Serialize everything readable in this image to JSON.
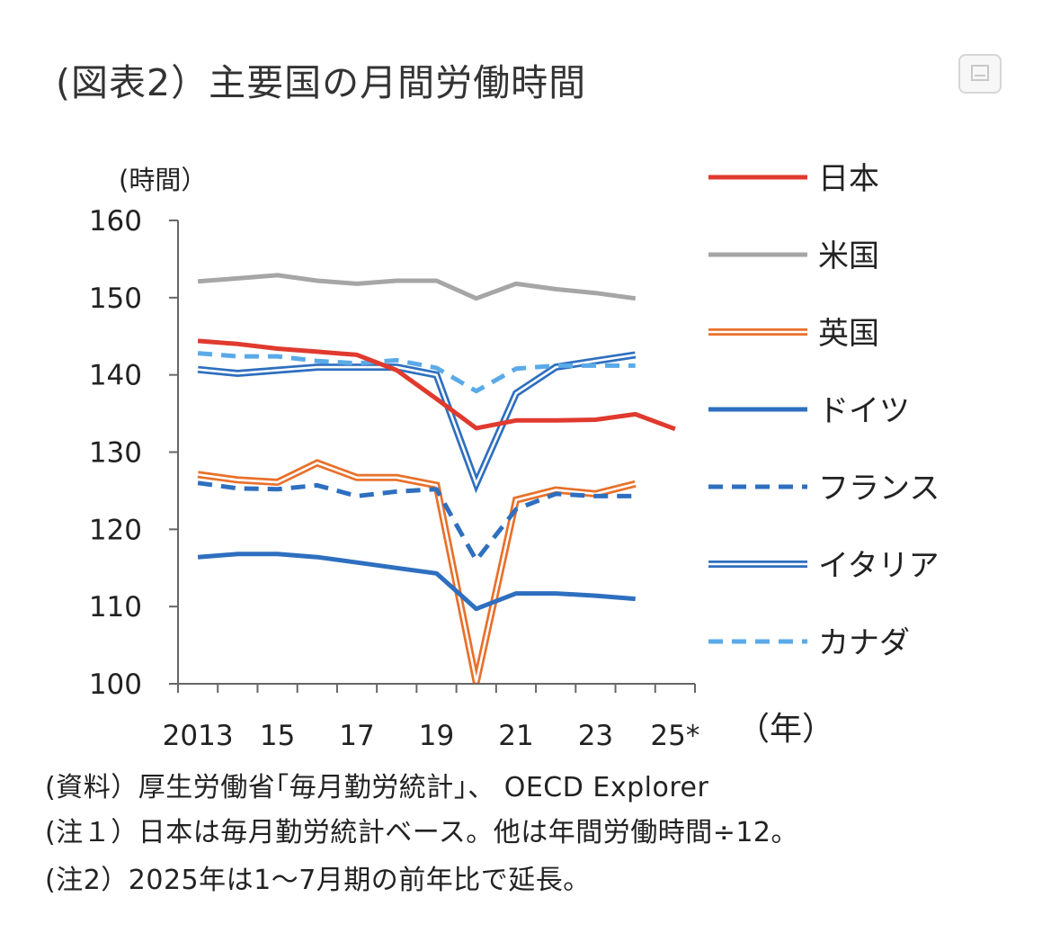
{
  "title": "(図表2）主要国の月間労働時間",
  "expand_button": {
    "icon": "expand-image-icon"
  },
  "notes": [
    "(資料）厚生労働省｢毎月勤労統計｣、 OECD Explorer",
    "(注１）日本は毎月勤労統計ベース。他は年間労働時間÷12。",
    "(注2）2025年は1～7月期の前年比で延長。"
  ],
  "chart_data": {
    "type": "line",
    "ylabel": "(時間）",
    "xlabel": "（年）",
    "ylim": [
      100,
      160
    ],
    "yticks": [
      100,
      110,
      120,
      130,
      140,
      150,
      160
    ],
    "xlim": [
      2012.5,
      2025.5
    ],
    "xticks": [
      2013,
      2015,
      2017,
      2019,
      2021,
      2023,
      2025
    ],
    "xtick_labels": [
      "2013",
      "15",
      "17",
      "19",
      "21",
      "23",
      "25*"
    ],
    "legend_position": "right",
    "grid": false,
    "series": [
      {
        "name": "日本",
        "color": "#e03a2e",
        "style": "solid",
        "x": [
          2013,
          2014,
          2015,
          2016,
          2017,
          2018,
          2019,
          2020,
          2021,
          2022,
          2023,
          2024,
          2025
        ],
        "y": [
          144.4,
          144.0,
          143.4,
          143.0,
          142.6,
          140.6,
          136.9,
          133.1,
          134.1,
          134.1,
          134.2,
          134.9,
          133.0
        ]
      },
      {
        "name": "米国",
        "color": "#a6a6a6",
        "style": "solid",
        "x": [
          2013,
          2014,
          2015,
          2016,
          2017,
          2018,
          2019,
          2020,
          2021,
          2022,
          2023,
          2024
        ],
        "y": [
          152.1,
          152.5,
          152.9,
          152.2,
          151.8,
          152.2,
          152.2,
          149.9,
          151.8,
          151.1,
          150.6,
          149.9
        ]
      },
      {
        "name": "英国",
        "color": "#e8702a",
        "style": "double",
        "x": [
          2013,
          2014,
          2015,
          2016,
          2017,
          2018,
          2019,
          2020,
          2021,
          2022,
          2023,
          2024
        ],
        "y": [
          127.1,
          126.4,
          126.1,
          128.6,
          126.7,
          126.7,
          125.7,
          100.2,
          123.8,
          125.1,
          124.6,
          125.9
        ]
      },
      {
        "name": "ドイツ",
        "color": "#2e6fbf",
        "style": "solid",
        "x": [
          2013,
          2014,
          2015,
          2016,
          2017,
          2018,
          2019,
          2020,
          2021,
          2022,
          2023,
          2024
        ],
        "y": [
          116.4,
          116.8,
          116.8,
          116.4,
          115.7,
          115.0,
          114.3,
          109.7,
          111.7,
          111.7,
          111.4,
          111.0
        ]
      },
      {
        "name": "フランス",
        "color": "#2e6fbf",
        "style": "dashed",
        "x": [
          2013,
          2014,
          2015,
          2016,
          2017,
          2018,
          2019,
          2020,
          2021,
          2022,
          2023,
          2024
        ],
        "y": [
          126.0,
          125.3,
          125.2,
          125.7,
          124.3,
          124.9,
          125.2,
          116.0,
          122.6,
          124.6,
          124.3,
          124.3
        ]
      },
      {
        "name": "イタリア",
        "color": "#2e6fbf",
        "style": "double",
        "x": [
          2013,
          2014,
          2015,
          2016,
          2017,
          2018,
          2019,
          2020,
          2021,
          2022,
          2023,
          2024
        ],
        "y": [
          140.7,
          140.2,
          140.6,
          141.0,
          141.0,
          141.0,
          140.0,
          125.9,
          137.6,
          141.0,
          141.8,
          142.6
        ]
      },
      {
        "name": "カナダ",
        "color": "#5aaae8",
        "style": "dashed",
        "x": [
          2013,
          2014,
          2015,
          2016,
          2017,
          2018,
          2019,
          2020,
          2021,
          2022,
          2023,
          2024
        ],
        "y": [
          142.8,
          142.4,
          142.4,
          141.8,
          141.5,
          141.9,
          140.9,
          137.9,
          140.8,
          141.2,
          141.2,
          141.2
        ]
      }
    ]
  }
}
